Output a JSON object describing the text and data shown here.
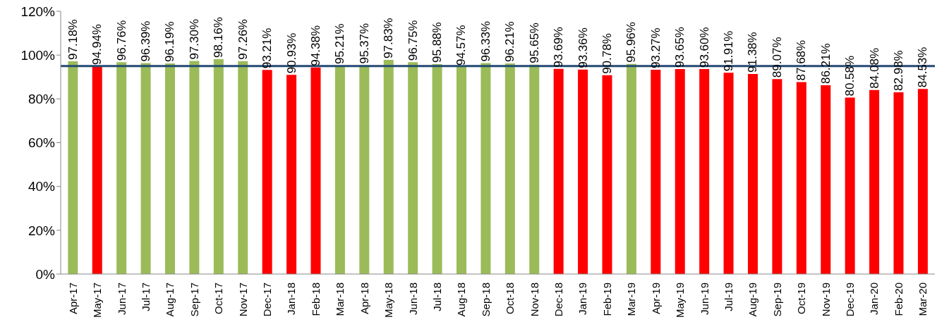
{
  "chart_data": {
    "type": "bar",
    "categories": [
      "Apr-17",
      "May-17",
      "Jun-17",
      "Jul-17",
      "Aug-17",
      "Sep-17",
      "Oct-17",
      "Nov-17",
      "Dec-17",
      "Jan-18",
      "Feb-18",
      "Mar-18",
      "Apr-18",
      "May-18",
      "Jun-18",
      "Jul-18",
      "Aug-18",
      "Sep-18",
      "Oct-18",
      "Nov-18",
      "Dec-18",
      "Jan-19",
      "Feb-19",
      "Mar-19",
      "Apr-19",
      "May-19",
      "Jun-19",
      "Jul-19",
      "Aug-19",
      "Sep-19",
      "Oct-19",
      "Nov-19",
      "Dec-19",
      "Jan-20",
      "Feb-20",
      "Mar-20"
    ],
    "values": [
      97.18,
      94.94,
      96.76,
      96.39,
      96.19,
      97.3,
      98.16,
      97.26,
      93.21,
      90.93,
      94.38,
      95.21,
      95.37,
      97.83,
      96.75,
      95.88,
      94.57,
      96.33,
      96.21,
      95.65,
      93.69,
      93.36,
      90.78,
      95.96,
      93.27,
      93.65,
      93.6,
      91.91,
      91.38,
      89.07,
      87.68,
      86.21,
      80.58,
      84.08,
      82.98,
      84.53
    ],
    "value_labels": [
      "97.18%",
      "94.94%",
      "96.76%",
      "96.39%",
      "96.19%",
      "97.30%",
      "98.16%",
      "97.26%",
      "93.21%",
      "90.93%",
      "94.38%",
      "95.21%",
      "95.37%",
      "97.83%",
      "96.75%",
      "95.88%",
      "94.57%",
      "96.33%",
      "96.21%",
      "95.65%",
      "93.69%",
      "93.36%",
      "90.78%",
      "95.96%",
      "93.27%",
      "93.65%",
      "93.60%",
      "91.91%",
      "91.38%",
      "89.07%",
      "87.68%",
      "86.21%",
      "80.58%",
      "84.08%",
      "82.98%",
      "84.53%"
    ],
    "colors": [
      "#9bbb59",
      "#ff0000",
      "#9bbb59",
      "#9bbb59",
      "#9bbb59",
      "#9bbb59",
      "#9bbb59",
      "#9bbb59",
      "#ff0000",
      "#ff0000",
      "#ff0000",
      "#9bbb59",
      "#9bbb59",
      "#9bbb59",
      "#9bbb59",
      "#9bbb59",
      "#9bbb59",
      "#9bbb59",
      "#9bbb59",
      "#9bbb59",
      "#ff0000",
      "#ff0000",
      "#ff0000",
      "#9bbb59",
      "#ff0000",
      "#ff0000",
      "#ff0000",
      "#ff0000",
      "#ff0000",
      "#ff0000",
      "#ff0000",
      "#ff0000",
      "#ff0000",
      "#ff0000",
      "#ff0000",
      "#ff0000"
    ],
    "ylim": [
      0,
      120
    ],
    "yticks": [
      {
        "value": 0,
        "label": "0%"
      },
      {
        "value": 20,
        "label": "20%"
      },
      {
        "value": 40,
        "label": "40%"
      },
      {
        "value": 60,
        "label": "60%"
      },
      {
        "value": 80,
        "label": "80%"
      },
      {
        "value": 100,
        "label": "100%"
      },
      {
        "value": 120,
        "label": "120%"
      }
    ],
    "ref_lines": [
      {
        "axis": "y",
        "value": 95,
        "color": "#244a73"
      }
    ],
    "grid": false,
    "legend": false
  }
}
